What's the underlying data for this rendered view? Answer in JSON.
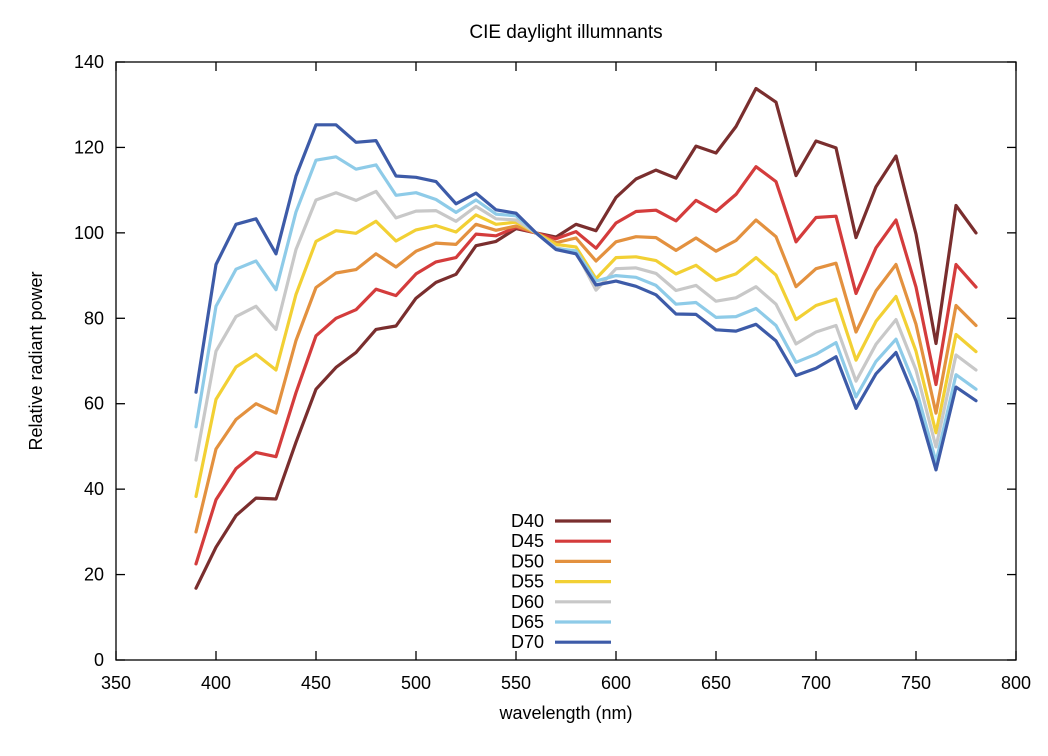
{
  "chart_data": {
    "type": "line",
    "title": "CIE daylight illumnants",
    "xlabel": "wavelength (nm)",
    "ylabel": "Relative radiant power",
    "xlim": [
      350,
      800
    ],
    "ylim": [
      0,
      140
    ],
    "xticks": [
      350,
      400,
      450,
      500,
      550,
      600,
      650,
      700,
      750,
      800
    ],
    "yticks": [
      0,
      20,
      40,
      60,
      80,
      100,
      120,
      140
    ],
    "grid": false,
    "legend_position": "bottom-center",
    "x": [
      390,
      400,
      410,
      420,
      430,
      440,
      450,
      460,
      470,
      480,
      490,
      500,
      510,
      520,
      530,
      540,
      550,
      560,
      570,
      580,
      590,
      600,
      610,
      620,
      630,
      640,
      650,
      660,
      670,
      680,
      690,
      700,
      710,
      720,
      730,
      740,
      750,
      760,
      770,
      780
    ],
    "series": [
      {
        "name": "D40",
        "color": "#7a2e2e",
        "values": [
          16.8,
          26.4,
          33.8,
          37.9,
          37.7,
          51.0,
          63.4,
          68.5,
          72.0,
          77.4,
          78.2,
          84.7,
          88.4,
          90.3,
          97.0,
          98.0,
          101.0,
          100.0,
          99.0,
          102.0,
          100.5,
          108.3,
          112.6,
          114.7,
          112.8,
          120.3,
          118.7,
          124.9,
          133.8,
          130.6,
          113.4,
          121.5,
          119.9,
          98.9,
          110.8,
          118.0,
          99.7,
          74.1,
          106.4,
          100.0
        ]
      },
      {
        "name": "D45",
        "color": "#d43c3c",
        "values": [
          22.5,
          37.5,
          44.8,
          48.6,
          47.6,
          62.6,
          75.9,
          80.0,
          82.0,
          86.8,
          85.3,
          90.4,
          93.2,
          94.2,
          99.7,
          99.3,
          101.3,
          100.0,
          98.6,
          100.3,
          96.4,
          102.3,
          105.0,
          105.3,
          102.8,
          107.6,
          105.0,
          109.0,
          115.5,
          112.0,
          97.9,
          103.6,
          103.9,
          85.8,
          96.5,
          103.0,
          87.3,
          64.5,
          92.6,
          87.3
        ]
      },
      {
        "name": "D50",
        "color": "#e3913f",
        "values": [
          30.0,
          49.4,
          56.3,
          60.0,
          57.8,
          74.8,
          87.2,
          90.6,
          91.4,
          95.1,
          92.0,
          95.7,
          97.6,
          97.3,
          102.0,
          100.6,
          101.6,
          100.0,
          97.7,
          98.8,
          93.4,
          97.9,
          99.1,
          98.9,
          95.9,
          98.8,
          95.7,
          98.2,
          103.0,
          99.1,
          87.4,
          91.6,
          92.9,
          76.8,
          86.4,
          92.6,
          78.6,
          57.8,
          83.0,
          78.3
        ]
      },
      {
        "name": "D55",
        "color": "#f2d034",
        "values": [
          38.3,
          61.0,
          68.6,
          71.6,
          67.9,
          85.6,
          98.0,
          100.5,
          99.9,
          102.7,
          98.1,
          100.7,
          101.7,
          100.2,
          104.2,
          102.0,
          102.5,
          100.0,
          97.3,
          96.7,
          89.3,
          94.2,
          94.4,
          93.5,
          90.4,
          92.4,
          88.9,
          90.4,
          94.2,
          90.1,
          79.7,
          83.0,
          84.5,
          70.2,
          79.3,
          85.1,
          72.3,
          53.2,
          76.2,
          72.2
        ]
      },
      {
        "name": "D60",
        "color": "#c8c8c8",
        "values": [
          46.8,
          72.3,
          80.4,
          82.8,
          77.4,
          96.1,
          107.7,
          109.4,
          107.6,
          109.7,
          103.5,
          105.1,
          105.2,
          102.7,
          106.2,
          103.3,
          103.0,
          100.0,
          96.5,
          95.6,
          86.6,
          91.6,
          91.8,
          90.5,
          86.5,
          87.7,
          84.0,
          84.8,
          87.4,
          83.3,
          74.0,
          76.8,
          78.3,
          65.3,
          73.9,
          79.7,
          67.9,
          49.9,
          71.4,
          67.9
        ]
      },
      {
        "name": "D65",
        "color": "#8ecbe8",
        "values": [
          54.6,
          82.8,
          91.5,
          93.4,
          86.7,
          104.9,
          117.0,
          117.8,
          114.9,
          115.9,
          108.8,
          109.4,
          107.8,
          104.8,
          107.7,
          104.4,
          104.0,
          100.0,
          96.3,
          95.8,
          88.7,
          90.0,
          89.6,
          87.7,
          83.3,
          83.7,
          80.2,
          80.4,
          82.3,
          78.3,
          69.7,
          71.6,
          74.3,
          61.6,
          69.9,
          75.1,
          63.6,
          46.4,
          66.8,
          63.4
        ]
      },
      {
        "name": "D70",
        "color": "#3d5ba8",
        "values": [
          62.7,
          92.6,
          102.0,
          103.3,
          95.1,
          113.3,
          125.3,
          125.3,
          121.2,
          121.6,
          113.3,
          113.0,
          112.0,
          106.8,
          109.3,
          105.4,
          104.6,
          100.0,
          96.1,
          95.1,
          87.8,
          88.7,
          87.5,
          85.5,
          81.0,
          80.9,
          77.3,
          77.0,
          78.6,
          74.7,
          66.6,
          68.3,
          71.0,
          58.9,
          67.0,
          72.0,
          60.7,
          44.5,
          63.9,
          60.7
        ]
      }
    ]
  }
}
